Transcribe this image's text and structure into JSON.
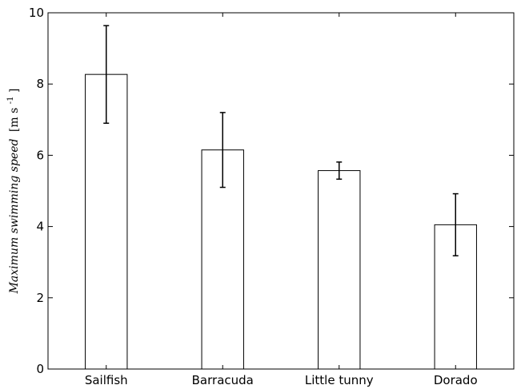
{
  "chart_data": {
    "type": "bar",
    "categories": [
      "Sailfish",
      "Barracuda",
      "Little tunny",
      "Dorado"
    ],
    "values": [
      8.27,
      6.15,
      5.57,
      4.05
    ],
    "error": [
      1.37,
      1.05,
      0.24,
      0.87
    ],
    "ylabel": "Maximum swimming speed",
    "ylabel_unit": "[m s",
    "ylabel_unit_exponent": "-1",
    "ylabel_unit_close": "]",
    "ylim": [
      0,
      10
    ],
    "yticks": [
      0,
      2,
      4,
      6,
      8,
      10
    ],
    "grid": false,
    "bar_fill": "#ffffff",
    "bar_stroke": "#000000"
  }
}
